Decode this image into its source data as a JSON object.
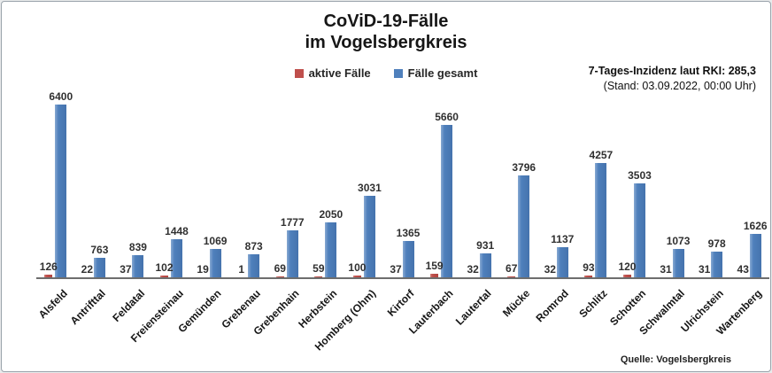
{
  "header": {
    "title_line1": "CoViD-19-Fälle",
    "title_line2": "im Vogelsbergkreis",
    "incidence_line1": "7-Tages-Inzidenz laut RKI: 285,3",
    "incidence_line2": "(Stand: 03.09.2022, 00:00 Uhr)"
  },
  "legend": {
    "items": [
      {
        "label": "aktive Fälle",
        "color": "#bf4f4c"
      },
      {
        "label": "Fälle gesamt",
        "color": "#4f80bc"
      }
    ]
  },
  "footer": {
    "source": "Quelle: Vogelsbergkreis"
  },
  "chart_data": {
    "type": "bar",
    "title": "CoViD-19-Fälle im Vogelsbergkreis",
    "xlabel": "",
    "ylabel": "",
    "ylim": [
      0,
      6400
    ],
    "grid": false,
    "legend_position": "top",
    "data_labels": true,
    "categories": [
      "Alsfeld",
      "Antrifttal",
      "Feldatal",
      "Freiensteinau",
      "Gemünden",
      "Grebenau",
      "Grebenhain",
      "Herbstein",
      "Homberg (Ohm)",
      "Kirtorf",
      "Lauterbach",
      "Lautertal",
      "Mücke",
      "Romrod",
      "Schlitz",
      "Schotten",
      "Schwalmtal",
      "Ulrichstein",
      "Wartenberg"
    ],
    "series": [
      {
        "name": "aktive Fälle",
        "color": "#bf4f4c",
        "values": [
          126,
          22,
          37,
          102,
          19,
          1,
          69,
          59,
          100,
          37,
          159,
          32,
          67,
          32,
          93,
          120,
          31,
          31,
          43
        ]
      },
      {
        "name": "Fälle gesamt",
        "color": "#4f80bc",
        "values": [
          6400,
          763,
          839,
          1448,
          1069,
          873,
          1777,
          2050,
          3031,
          1365,
          5660,
          931,
          3796,
          1137,
          4257,
          3503,
          1073,
          978,
          1626
        ]
      }
    ],
    "annotations": [
      "7-Tages-Inzidenz laut RKI: 285,3",
      "(Stand: 03.09.2022, 00:00 Uhr)",
      "Quelle: Vogelsbergkreis"
    ]
  }
}
